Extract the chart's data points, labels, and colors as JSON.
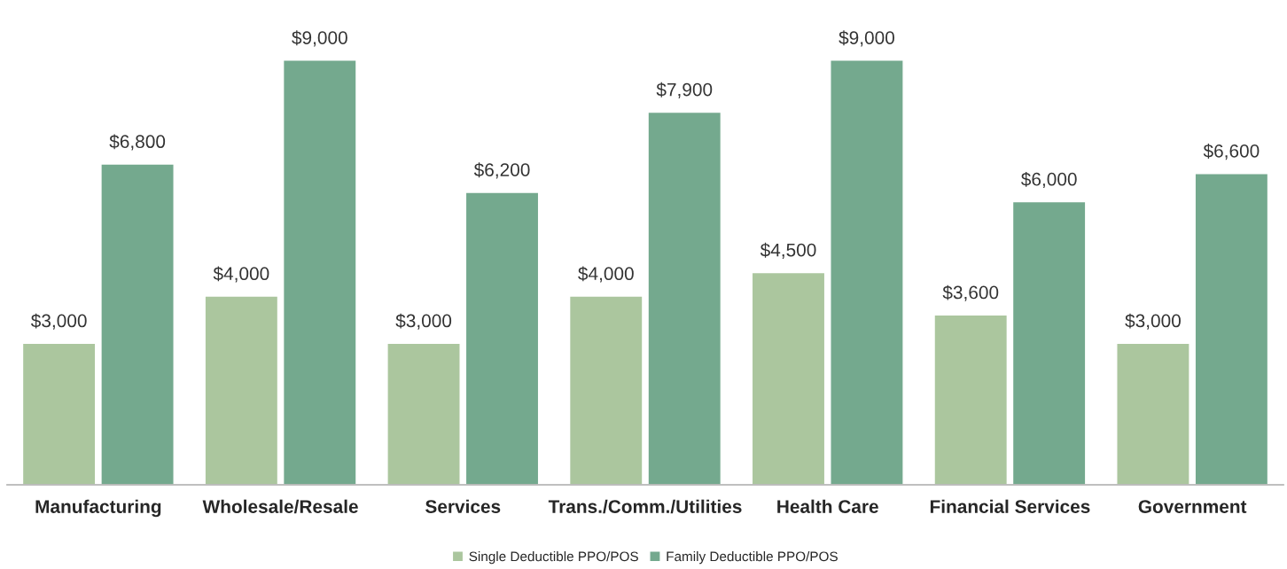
{
  "chart_data": {
    "type": "bar",
    "categories": [
      "Manufacturing",
      "Wholesale/Resale",
      "Services",
      "Trans./Comm./Utilities",
      "Health Care",
      "Financial Services",
      "Government"
    ],
    "series": [
      {
        "name": "Single Deductible PPO/POS",
        "color": "#abc69e",
        "values": [
          3000,
          4000,
          3000,
          4000,
          4500,
          3600,
          3000
        ],
        "value_labels": [
          "$3,000",
          "$4,000",
          "$3,000",
          "$4,000",
          "$4,500",
          "$3,600",
          "$3,000"
        ]
      },
      {
        "name": "Family Deductible PPO/POS",
        "color": "#74a98e",
        "values": [
          6800,
          9000,
          6200,
          7900,
          9000,
          6000,
          6600
        ],
        "value_labels": [
          "$6,800",
          "$9,000",
          "$6,200",
          "$7,900",
          "$9,000",
          "$6,000",
          "$6,600"
        ]
      }
    ],
    "grid": false,
    "legend": "bottom"
  }
}
